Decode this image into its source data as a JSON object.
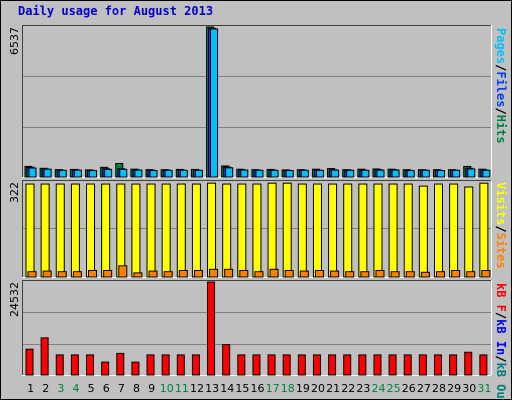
{
  "title": "Daily usage for August 2013",
  "colors": {
    "background": "#c0c0c0",
    "pages": "#00c0ff",
    "files": "#0040ff",
    "hits": "#008040",
    "visits": "#ffff00",
    "sites": "#ff8000",
    "kbin": "#0000ff",
    "kbout": "#008080",
    "kbf": "#ff0000",
    "weekend_label": "#008040",
    "weekday_label": "#000000"
  },
  "chart_data": [
    {
      "type": "bar",
      "panel": "hits",
      "ymax_label": "6537",
      "legend": [
        {
          "text": "Pages",
          "color": "#00c0ff"
        },
        {
          "text": "/",
          "color": "#000000"
        },
        {
          "text": "Files",
          "color": "#0040ff"
        },
        {
          "text": "/",
          "color": "#000000"
        },
        {
          "text": "Hits",
          "color": "#008040"
        }
      ],
      "categories": [
        "1",
        "2",
        "3",
        "4",
        "5",
        "6",
        "7",
        "8",
        "9",
        "10",
        "11",
        "12",
        "13",
        "14",
        "15",
        "16",
        "17",
        "18",
        "19",
        "20",
        "21",
        "22",
        "23",
        "24",
        "25",
        "26",
        "27",
        "28",
        "29",
        "30",
        "31"
      ],
      "series": [
        {
          "name": "Hits",
          "values": [
            460,
            380,
            320,
            330,
            310,
            420,
            590,
            340,
            320,
            320,
            330,
            330,
            6537,
            480,
            340,
            320,
            330,
            310,
            320,
            340,
            370,
            320,
            340,
            350,
            340,
            320,
            320,
            320,
            320,
            460,
            340
          ]
        },
        {
          "name": "Files",
          "values": [
            420,
            350,
            300,
            310,
            290,
            360,
            360,
            310,
            290,
            300,
            300,
            300,
            6480,
            430,
            310,
            300,
            300,
            290,
            300,
            300,
            320,
            300,
            300,
            320,
            320,
            290,
            300,
            290,
            300,
            380,
            300
          ]
        },
        {
          "name": "Pages",
          "values": [
            390,
            340,
            290,
            300,
            280,
            330,
            330,
            300,
            280,
            290,
            290,
            290,
            6450,
            400,
            300,
            290,
            290,
            280,
            290,
            290,
            300,
            290,
            290,
            300,
            300,
            280,
            290,
            280,
            290,
            350,
            290
          ]
        }
      ]
    },
    {
      "type": "bar",
      "panel": "visits",
      "ymax_label": "322",
      "legend": [
        {
          "text": "Visits",
          "color": "#ffff00"
        },
        {
          "text": "/",
          "color": "#000000"
        },
        {
          "text": "Sites",
          "color": "#ff8000"
        }
      ],
      "categories": [
        "1",
        "2",
        "3",
        "4",
        "5",
        "6",
        "7",
        "8",
        "9",
        "10",
        "11",
        "12",
        "13",
        "14",
        "15",
        "16",
        "17",
        "18",
        "19",
        "20",
        "21",
        "22",
        "23",
        "24",
        "25",
        "26",
        "27",
        "28",
        "29",
        "30",
        "31"
      ],
      "series": [
        {
          "name": "Visits",
          "values": [
            315,
            315,
            315,
            315,
            315,
            315,
            315,
            315,
            315,
            315,
            315,
            315,
            318,
            315,
            315,
            315,
            318,
            318,
            315,
            315,
            315,
            315,
            315,
            315,
            315,
            315,
            308,
            315,
            315,
            305,
            318
          ]
        },
        {
          "name": "Sites",
          "values": [
            18,
            20,
            18,
            18,
            22,
            22,
            38,
            14,
            20,
            18,
            22,
            22,
            26,
            26,
            22,
            18,
            26,
            22,
            20,
            22,
            20,
            18,
            18,
            22,
            18,
            18,
            16,
            18,
            22,
            18,
            22
          ]
        }
      ]
    },
    {
      "type": "bar",
      "panel": "kbytes",
      "ymax_label": "24532",
      "legend": [
        {
          "text": "kB F",
          "color": "#ff0000"
        },
        {
          "text": "/",
          "color": "#000000"
        },
        {
          "text": "kB In",
          "color": "#0000ff"
        },
        {
          "text": "/",
          "color": "#000000"
        },
        {
          "text": "kB Out",
          "color": "#008080"
        }
      ],
      "categories": [
        "1",
        "2",
        "3",
        "4",
        "5",
        "6",
        "7",
        "8",
        "9",
        "10",
        "11",
        "12",
        "13",
        "14",
        "15",
        "16",
        "17",
        "18",
        "19",
        "20",
        "21",
        "22",
        "23",
        "24",
        "25",
        "26",
        "27",
        "28",
        "29",
        "30",
        "31"
      ],
      "series": [
        {
          "name": "kB F",
          "values": [
            6800,
            9800,
            5300,
            5300,
            5300,
            3400,
            5700,
            3400,
            5300,
            5300,
            5300,
            5300,
            24532,
            8000,
            5300,
            5300,
            5300,
            5300,
            5300,
            5300,
            5300,
            5300,
            5300,
            5300,
            5300,
            5300,
            5300,
            5300,
            5300,
            6000,
            5300
          ]
        }
      ]
    }
  ],
  "x_labels": [
    {
      "text": "1",
      "weekend": false
    },
    {
      "text": "2",
      "weekend": false
    },
    {
      "text": "3",
      "weekend": true
    },
    {
      "text": "4",
      "weekend": true
    },
    {
      "text": "5",
      "weekend": false
    },
    {
      "text": "6",
      "weekend": false
    },
    {
      "text": "7",
      "weekend": false
    },
    {
      "text": "8",
      "weekend": false
    },
    {
      "text": "9",
      "weekend": false
    },
    {
      "text": "10",
      "weekend": true
    },
    {
      "text": "11",
      "weekend": true
    },
    {
      "text": "12",
      "weekend": false
    },
    {
      "text": "13",
      "weekend": false
    },
    {
      "text": "14",
      "weekend": false
    },
    {
      "text": "15",
      "weekend": false
    },
    {
      "text": "16",
      "weekend": false
    },
    {
      "text": "17",
      "weekend": true
    },
    {
      "text": "18",
      "weekend": true
    },
    {
      "text": "19",
      "weekend": false
    },
    {
      "text": "20",
      "weekend": false
    },
    {
      "text": "21",
      "weekend": false
    },
    {
      "text": "22",
      "weekend": false
    },
    {
      "text": "23",
      "weekend": false
    },
    {
      "text": "24",
      "weekend": true
    },
    {
      "text": "25",
      "weekend": true
    },
    {
      "text": "26",
      "weekend": false
    },
    {
      "text": "27",
      "weekend": false
    },
    {
      "text": "28",
      "weekend": false
    },
    {
      "text": "29",
      "weekend": false
    },
    {
      "text": "30",
      "weekend": false
    },
    {
      "text": "31",
      "weekend": true
    }
  ]
}
